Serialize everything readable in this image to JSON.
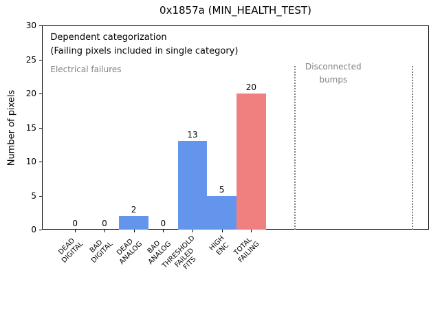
{
  "chart_data": {
    "type": "bar",
    "title": "0x1857a (MIN_HEALTH_TEST)",
    "xlabel": "",
    "ylabel": "Number of pixels",
    "categories": [
      "DEAD\nDIGITAL",
      "BAD\nDIGITAL",
      "DEAD\nANALOG",
      "BAD\nANALOG",
      "THRESHOLD\nFAILED\nFITS",
      "HIGH\nENC",
      "TOTAL\nFAILING"
    ],
    "x": [
      0,
      1,
      2,
      3,
      4,
      5,
      6
    ],
    "values": [
      0,
      0,
      2,
      0,
      13,
      5,
      20
    ],
    "bar_colors": [
      "#6495ed",
      "#6495ed",
      "#6495ed",
      "#6495ed",
      "#6495ed",
      "#6495ed",
      "#f08080"
    ],
    "bar_width": 1.0,
    "ylim": [
      0,
      30
    ],
    "yticks": [
      0,
      5,
      10,
      15,
      20,
      25,
      30
    ],
    "xlim": [
      -1.13,
      12.06
    ],
    "grid": false,
    "legend": null,
    "annotations": [
      {
        "text": "Dependent categorization\n(Failing pixels included in single category)",
        "x": -0.84,
        "y": 29.2,
        "color": "#000000",
        "align": "left",
        "size": 13
      },
      {
        "text": "Electrical failures",
        "x": -0.84,
        "y": 24.45,
        "color": "#808080",
        "align": "left",
        "size": 12
      },
      {
        "text": "Disconnected\nbumps",
        "x": 8.8,
        "y": 24.8,
        "color": "#808080",
        "align": "center",
        "size": 12
      }
    ],
    "vlines": [
      {
        "x": 7.5,
        "ymin": 0,
        "ymax": 24,
        "color": "#808080",
        "style": "dotted"
      },
      {
        "x": 11.5,
        "ymin": 0,
        "ymax": 24,
        "color": "#808080",
        "style": "dotted"
      }
    ]
  }
}
